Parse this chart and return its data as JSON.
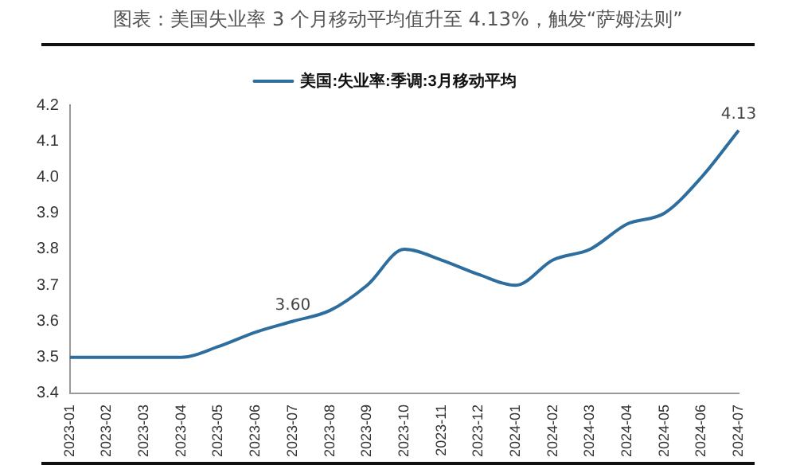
{
  "chart_data": {
    "type": "line",
    "title": "图表：美国失业率 3 个月移动平均值升至 4.13%，触发“萨姆法则”",
    "categories": [
      "2023-01",
      "2023-02",
      "2023-03",
      "2023-04",
      "2023-05",
      "2023-06",
      "2023-07",
      "2023-08",
      "2023-09",
      "2023-10",
      "2023-11",
      "2023-12",
      "2024-01",
      "2024-02",
      "2024-03",
      "2024-04",
      "2024-05",
      "2024-06",
      "2024-07"
    ],
    "series": [
      {
        "name": "美国:失业率:季调:3月移动平均",
        "color": "#2e6e9e",
        "values": [
          3.5,
          3.5,
          3.5,
          3.5,
          3.53,
          3.57,
          3.6,
          3.63,
          3.7,
          3.8,
          3.77,
          3.73,
          3.7,
          3.77,
          3.8,
          3.87,
          3.9,
          4.0,
          4.13
        ],
        "value_labels": [
          null,
          null,
          null,
          null,
          null,
          null,
          "3.60",
          null,
          null,
          null,
          null,
          null,
          null,
          null,
          null,
          null,
          null,
          null,
          "4.13"
        ]
      }
    ],
    "ylim": [
      3.4,
      4.2
    ],
    "yticks": [
      3.4,
      3.5,
      3.6,
      3.7,
      3.8,
      3.9,
      {
        "value": 4,
        "label": "4.0"
      },
      4.1,
      4.2
    ],
    "grid": false,
    "legend": "top",
    "marker": "none",
    "line_style": "solid"
  }
}
